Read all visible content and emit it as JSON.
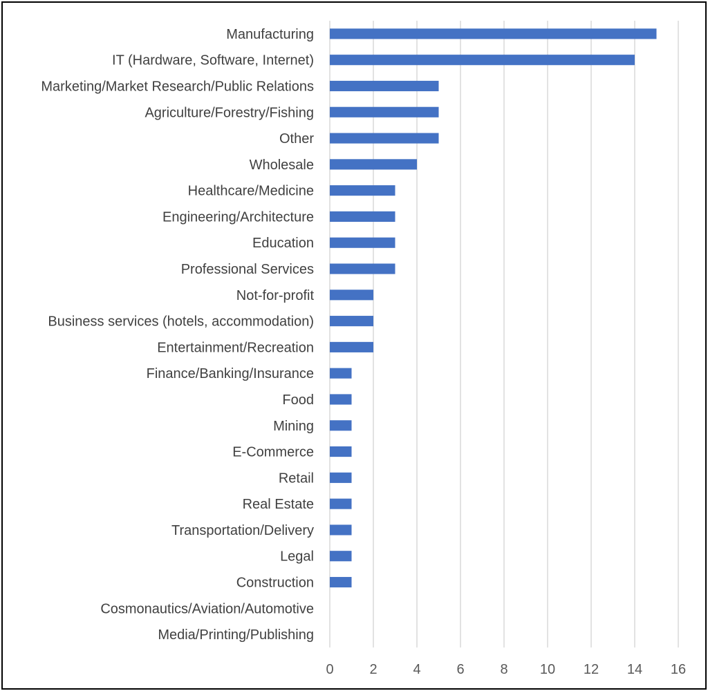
{
  "chart_data": {
    "type": "bar",
    "orientation": "horizontal",
    "categories": [
      "Manufacturing",
      "IT (Hardware, Software, Internet)",
      "Marketing/Market Research/Public Relations",
      "Agriculture/Forestry/Fishing",
      "Other",
      "Wholesale",
      "Healthcare/Medicine",
      "Engineering/Architecture",
      "Education",
      "Professional Services",
      "Not-for-profit",
      "Business services (hotels, accommodation)",
      "Entertainment/Recreation",
      "Finance/Banking/Insurance",
      "Food",
      "Mining",
      "E-Commerce",
      "Retail",
      "Real Estate",
      "Transportation/Delivery",
      "Legal",
      "Construction",
      "Cosmonautics/Aviation/Automotive",
      "Media/Printing/Publishing"
    ],
    "values": [
      15,
      14,
      5,
      5,
      5,
      4,
      3,
      3,
      3,
      3,
      2,
      2,
      2,
      1,
      1,
      1,
      1,
      1,
      1,
      1,
      1,
      1,
      0,
      0
    ],
    "xlim": [
      0,
      16
    ],
    "xticks": [
      "0",
      "2",
      "4",
      "6",
      "8",
      "10",
      "12",
      "14",
      "16"
    ],
    "grid": true,
    "legend": "none",
    "title": "",
    "xlabel": "",
    "ylabel": "",
    "bar_color": "#4472C4"
  }
}
